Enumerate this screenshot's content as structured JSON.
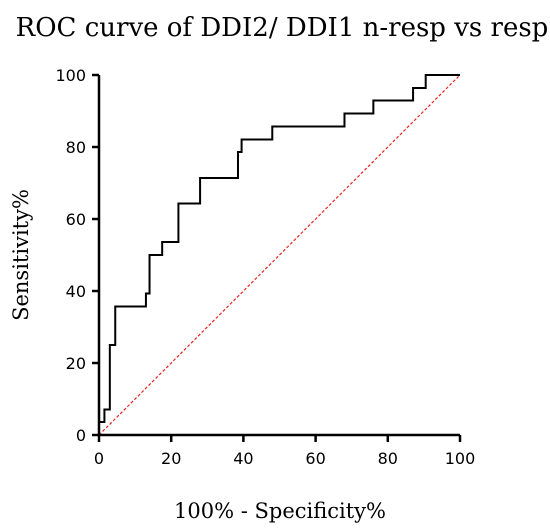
{
  "chart_data": {
    "type": "line",
    "title": "ROC curve of DDI2/ DDI1 n-resp vs resp",
    "xlabel": "100% - Specificity%",
    "ylabel": "Sensitivity%",
    "xlim": [
      0,
      100
    ],
    "ylim": [
      0,
      100
    ],
    "x_ticks": [
      0,
      20,
      40,
      60,
      80,
      100
    ],
    "y_ticks": [
      0,
      20,
      40,
      60,
      80,
      100
    ],
    "grid": false,
    "legend": "none",
    "series": [
      {
        "color": "#000000",
        "style": "step",
        "points": [
          [
            0,
            0
          ],
          [
            0,
            3.6
          ],
          [
            1.5,
            3.6
          ],
          [
            1.5,
            7.1
          ],
          [
            3,
            7.1
          ],
          [
            3,
            25
          ],
          [
            4.5,
            25
          ],
          [
            4.5,
            35.7
          ],
          [
            13,
            35.7
          ],
          [
            13,
            39.3
          ],
          [
            14,
            39.3
          ],
          [
            14,
            50
          ],
          [
            17.5,
            50
          ],
          [
            17.5,
            53.6
          ],
          [
            22,
            53.6
          ],
          [
            22,
            64.3
          ],
          [
            28,
            64.3
          ],
          [
            28,
            71.4
          ],
          [
            38.5,
            71.4
          ],
          [
            38.5,
            78.6
          ],
          [
            39.5,
            78.6
          ],
          [
            39.5,
            82.1
          ],
          [
            48,
            82.1
          ],
          [
            48,
            85.7
          ],
          [
            68,
            85.7
          ],
          [
            68,
            89.3
          ],
          [
            76,
            89.3
          ],
          [
            76,
            92.9
          ],
          [
            87,
            92.9
          ],
          [
            87,
            96.4
          ],
          [
            90.5,
            96.4
          ],
          [
            90.5,
            100
          ],
          [
            100,
            100
          ]
        ]
      },
      {
        "color": "#e8231e",
        "style": "dashed",
        "points": [
          [
            0,
            0
          ],
          [
            100,
            100
          ]
        ]
      }
    ]
  }
}
